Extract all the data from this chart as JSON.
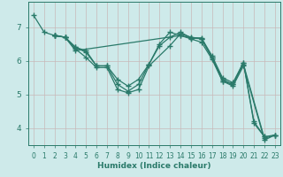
{
  "xlabel": "Humidex (Indice chaleur)",
  "xlim": [
    -0.5,
    23.5
  ],
  "ylim": [
    3.5,
    7.75
  ],
  "yticks": [
    4,
    5,
    6,
    7
  ],
  "xticks": [
    0,
    1,
    2,
    3,
    4,
    5,
    6,
    7,
    8,
    9,
    10,
    11,
    12,
    13,
    14,
    15,
    16,
    17,
    18,
    19,
    20,
    21,
    22,
    23
  ],
  "bg_color": "#ceeaea",
  "grid_color": "#b8d8d8",
  "line_color": "#2a7a6a",
  "lines": [
    {
      "x": [
        0,
        1,
        2
      ],
      "y": [
        7.35,
        6.85,
        6.75
      ]
    },
    {
      "x": [
        2,
        3,
        4,
        5,
        6,
        7,
        8,
        9,
        10,
        11,
        12,
        13,
        14,
        15,
        16,
        17,
        18,
        19,
        20,
        21,
        22
      ],
      "y": [
        6.75,
        6.7,
        6.4,
        6.3,
        5.85,
        5.85,
        5.45,
        5.25,
        5.45,
        5.9,
        6.5,
        6.85,
        6.75,
        6.68,
        6.68,
        6.15,
        5.5,
        5.35,
        5.95,
        4.15,
        3.75
      ]
    },
    {
      "x": [
        2,
        3,
        4,
        5,
        6,
        7,
        8,
        9,
        10,
        11,
        12,
        13,
        14,
        15,
        16,
        17,
        18,
        19,
        20,
        21,
        22,
        23
      ],
      "y": [
        6.75,
        6.7,
        6.4,
        6.25,
        5.85,
        5.85,
        5.3,
        5.1,
        5.3,
        5.9,
        6.45,
        6.7,
        6.85,
        6.68,
        6.65,
        6.1,
        5.45,
        5.3,
        5.95,
        4.2,
        3.75,
        3.8
      ]
    },
    {
      "x": [
        2,
        3,
        4,
        5,
        6,
        7,
        8,
        9,
        10,
        11,
        13,
        14,
        15,
        16,
        17,
        18,
        19,
        20,
        22,
        23
      ],
      "y": [
        6.75,
        6.7,
        6.35,
        6.1,
        5.8,
        5.8,
        5.15,
        5.05,
        5.15,
        5.85,
        6.45,
        6.8,
        6.7,
        6.65,
        6.1,
        5.4,
        5.3,
        5.9,
        3.7,
        3.8
      ]
    },
    {
      "x": [
        2,
        3,
        4,
        14,
        15,
        16,
        17,
        18,
        19,
        20,
        22,
        23
      ],
      "y": [
        6.75,
        6.7,
        6.3,
        6.75,
        6.65,
        6.55,
        6.05,
        5.4,
        5.25,
        5.85,
        3.65,
        3.8
      ]
    }
  ]
}
